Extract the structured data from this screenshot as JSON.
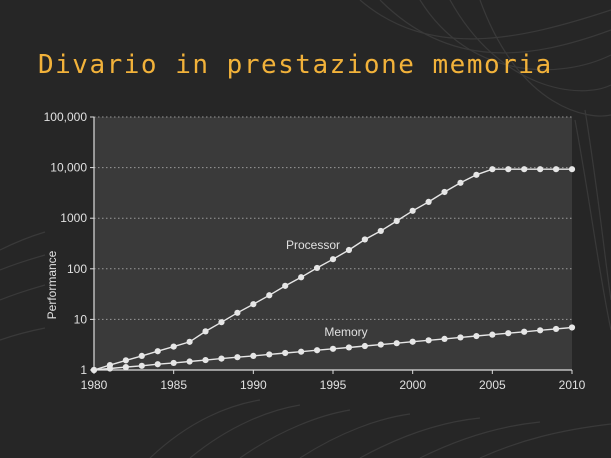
{
  "slide": {
    "title": "Divario in prestazione memoria"
  },
  "colors": {
    "background": "#262626",
    "title": "#f2b23a",
    "plot_background": "#3a3a3a",
    "series": "#e6e6e6",
    "text": "#e0e0e0",
    "grid": "#9a9a9a"
  },
  "chart_data": {
    "type": "line",
    "xlabel": "",
    "ylabel": "Performance",
    "xlim": [
      1980,
      2010
    ],
    "ylim": [
      1,
      100000
    ],
    "y_scale": "log",
    "grid": "horizontal dotted",
    "legend": "none",
    "x_ticks": [
      1980,
      1985,
      1990,
      1995,
      2000,
      2005,
      2010
    ],
    "x_tick_labels": [
      "1980",
      "1985",
      "1990",
      "1995",
      "2000",
      "2005",
      "2010"
    ],
    "y_ticks": [
      1,
      10,
      100,
      1000,
      10000,
      100000
    ],
    "y_tick_labels": [
      "1",
      "10",
      "100",
      "1000",
      "10,000",
      "100,000"
    ],
    "x": [
      1980,
      1981,
      1982,
      1983,
      1984,
      1985,
      1986,
      1987,
      1988,
      1989,
      1990,
      1991,
      1992,
      1993,
      1994,
      1995,
      1996,
      1997,
      1998,
      1999,
      2000,
      2001,
      2002,
      2003,
      2004,
      2005,
      2006,
      2007,
      2008,
      2009,
      2010
    ],
    "series": [
      {
        "name": "Processor",
        "values": [
          1,
          1.25,
          1.55,
          1.9,
          2.35,
          2.9,
          3.6,
          5.8,
          8.8,
          13.5,
          20,
          30,
          46,
          68,
          104,
          155,
          235,
          380,
          560,
          880,
          1400,
          2100,
          3300,
          5000,
          7200,
          9300,
          9300,
          9300,
          9300,
          9300,
          9300
        ]
      },
      {
        "name": "Memory",
        "values": [
          1,
          1.07,
          1.14,
          1.21,
          1.3,
          1.38,
          1.47,
          1.57,
          1.68,
          1.79,
          1.9,
          2.03,
          2.17,
          2.3,
          2.46,
          2.62,
          2.79,
          2.98,
          3.18,
          3.39,
          3.62,
          3.86,
          4.12,
          4.4,
          4.69,
          5.0,
          5.34,
          5.7,
          6.08,
          6.48,
          6.92
        ]
      }
    ]
  }
}
